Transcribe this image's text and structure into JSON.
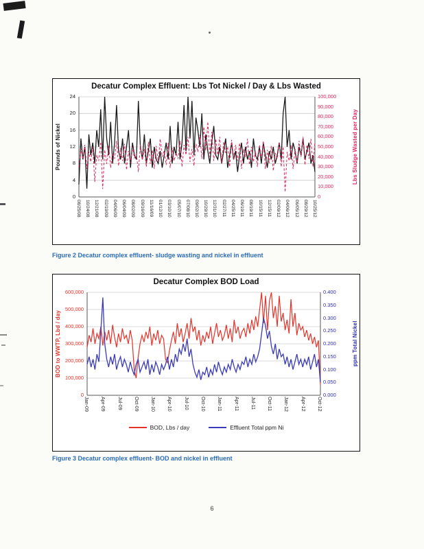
{
  "page": {
    "number": "6"
  },
  "figures": [
    {
      "caption": "Figure 2 Decatur complex effluent- sludge wasting and nickel in effluent"
    },
    {
      "caption": "Figure 3 Decatur complex effluent- BOD and nickel in effluent"
    }
  ],
  "chart_data": [
    {
      "type": "line",
      "title": "Decatur Complex Effluent:  Lbs Tot Nickel / Day & Lbs Wasted",
      "ylabel_left": "Pounds of Nickel",
      "ylabel_right": "Lbs Sludge Wasted per Day",
      "ylim_left": [
        0,
        24
      ],
      "ylim_right": [
        0,
        100000
      ],
      "yticks_left": [
        "24",
        "20",
        "16",
        "12",
        "8",
        "4",
        "0"
      ],
      "yticks_right": [
        "100,000",
        "90,000",
        "80,000",
        "70,000",
        "60,000",
        "50,000",
        "40,000",
        "30,000",
        "20,000",
        "10,000",
        "0"
      ],
      "grid": "horizontal",
      "xticklabels": [
        "08/25/08",
        "10/24/08",
        "12/21/08",
        "02/19/09",
        "04/06/09",
        "06/04/09",
        "08/02/09",
        "09/16/09",
        "11/16/09",
        "01/12/10",
        "03/10/10",
        "05/07/10",
        "07/08/10",
        "09/02/10",
        "10/29/10",
        "12/31/10",
        "02/27/11",
        "04/25/11",
        "06/19/11",
        "08/19/11",
        "10/15/11",
        "12/15/11",
        "02/09/12",
        "04/06/12",
        "06/05/12",
        "08/29/12",
        "10/25/12"
      ],
      "series": [
        {
          "name": "Lbs Tot Nickel / Day",
          "axis": "left",
          "color": "#1a1a1a",
          "style": "solid",
          "values": [
            3,
            14,
            9,
            12,
            2,
            15,
            10,
            13,
            8,
            16,
            12,
            21,
            9,
            24,
            14,
            10,
            18,
            8,
            13,
            22,
            11,
            9,
            14,
            8,
            12,
            16,
            7,
            13,
            10,
            9,
            23,
            12,
            9,
            15,
            8,
            11,
            14,
            7,
            12,
            9,
            8,
            11,
            7,
            10,
            13,
            9,
            17,
            8,
            12,
            10,
            18,
            9,
            13,
            22,
            11,
            24,
            14,
            23,
            10,
            19,
            16,
            12,
            20,
            9,
            15,
            11,
            8,
            13,
            17,
            10,
            9,
            12,
            8,
            11,
            14,
            7,
            10,
            13,
            9,
            11,
            6,
            10,
            13,
            8,
            12,
            9,
            11,
            7,
            14,
            10,
            9,
            12,
            8,
            13,
            10,
            7,
            11,
            9,
            12,
            8,
            10,
            13,
            9,
            20,
            24,
            12,
            16,
            9,
            13,
            11,
            8,
            12,
            10,
            14,
            9,
            11,
            13,
            8,
            10,
            6
          ]
        },
        {
          "name": "Lbs Sludge Wasted per Day",
          "axis": "right",
          "color": "#e0245e",
          "style": "dashed",
          "values": [
            30000,
            48000,
            38000,
            52000,
            28000,
            45000,
            35000,
            50000,
            15000,
            42000,
            36000,
            55000,
            8000,
            47000,
            33000,
            51000,
            29000,
            44000,
            38000,
            56000,
            31000,
            49000,
            36000,
            53000,
            27000,
            46000,
            34000,
            50000,
            39000,
            43000,
            25000,
            52000,
            37000,
            48000,
            30000,
            55000,
            33000,
            47000,
            28000,
            51000,
            35000,
            58000,
            40000,
            46000,
            32000,
            54000,
            29000,
            49000,
            36000,
            44000,
            38000,
            56000,
            30000,
            52000,
            42000,
            60000,
            35000,
            48000,
            31000,
            53000,
            45000,
            62000,
            38000,
            70000,
            46000,
            75000,
            40000,
            65000,
            36000,
            58000,
            42000,
            60000,
            34000,
            55000,
            44000,
            50000,
            30000,
            57000,
            38000,
            52000,
            36000,
            54000,
            28000,
            48000,
            40000,
            58000,
            32000,
            50000,
            35000,
            46000,
            30000,
            52000,
            38000,
            56000,
            28000,
            47000,
            34000,
            51000,
            26000,
            44000,
            38000,
            55000,
            30000,
            50000,
            5000,
            45000,
            36000,
            52000,
            28000,
            48000,
            34000,
            56000,
            40000,
            60000,
            32000,
            52000,
            38000,
            58000,
            30000,
            55000
          ]
        }
      ]
    },
    {
      "type": "line",
      "title": "Decatur Complex BOD Load",
      "ylabel_left": "BOD to WWTP, Lbd / day",
      "ylabel_right": "ppm Total Nickel",
      "ylim_left": [
        0,
        600000
      ],
      "ylim_right": [
        0,
        0.4
      ],
      "yticks_left": [
        "600,000",
        "500,000",
        "400,000",
        "300,000",
        "200,000",
        "100,000",
        "0"
      ],
      "yticks_right": [
        "0.400",
        "0.350",
        "0.300",
        "0.250",
        "0.200",
        "0.150",
        "0.100",
        "0.050",
        "0.000"
      ],
      "grid": "horizontal",
      "legend_position": "bottom",
      "xticklabels": [
        "Jan-09",
        "Apr-09",
        "Jul-09",
        "Oct-09",
        "Jan-10",
        "Apr-10",
        "Jul-10",
        "Oct-10",
        "Jan-11",
        "Apr-11",
        "Jul-11",
        "Oct-11",
        "Jan-12",
        "Apr-12",
        "Oct-12"
      ],
      "series": [
        {
          "name": "BOD, Lbs / day",
          "axis": "left",
          "color": "#e53228",
          "style": "solid",
          "values": [
            280000,
            350000,
            310000,
            390000,
            300000,
            360000,
            330000,
            400000,
            290000,
            370000,
            320000,
            380000,
            300000,
            410000,
            340000,
            280000,
            360000,
            310000,
            390000,
            330000,
            350000,
            300000,
            380000,
            320000,
            150000,
            100000,
            220000,
            300000,
            350000,
            310000,
            370000,
            330000,
            400000,
            290000,
            360000,
            320000,
            380000,
            300000,
            350000,
            330000,
            210000,
            190000,
            260000,
            320000,
            370000,
            300000,
            420000,
            340000,
            390000,
            310000,
            360000,
            420000,
            330000,
            450000,
            370000,
            400000,
            320000,
            380000,
            290000,
            350000,
            310000,
            370000,
            330000,
            400000,
            300000,
            360000,
            420000,
            340000,
            380000,
            320000,
            350000,
            410000,
            330000,
            390000,
            310000,
            440000,
            360000,
            400000,
            330000,
            370000,
            390000,
            340000,
            420000,
            360000,
            440000,
            380000,
            460000,
            400000,
            500000,
            600000,
            420000,
            580000,
            380000,
            550000,
            600000,
            450000,
            520000,
            400000,
            580000,
            430000,
            480000,
            380000,
            440000,
            360000,
            560000,
            400000,
            480000,
            350000,
            420000,
            380000,
            400000,
            340000,
            380000,
            320000,
            360000,
            300000,
            340000,
            280000,
            320000,
            60000
          ]
        },
        {
          "name": "Effluent Total ppm Ni",
          "axis": "right",
          "color": "#3a3ab8",
          "style": "solid",
          "values": [
            0.12,
            0.15,
            0.11,
            0.14,
            0.1,
            0.16,
            0.13,
            0.25,
            0.38,
            0.2,
            0.14,
            0.11,
            0.15,
            0.12,
            0.16,
            0.1,
            0.13,
            0.15,
            0.11,
            0.14,
            0.12,
            0.09,
            0.13,
            0.1,
            0.08,
            0.12,
            0.14,
            0.09,
            0.11,
            0.13,
            0.1,
            0.14,
            0.08,
            0.12,
            0.09,
            0.13,
            0.11,
            0.08,
            0.12,
            0.1,
            0.12,
            0.15,
            0.1,
            0.14,
            0.11,
            0.16,
            0.13,
            0.18,
            0.16,
            0.2,
            0.17,
            0.22,
            0.15,
            0.18,
            0.12,
            0.09,
            0.07,
            0.1,
            0.06,
            0.09,
            0.08,
            0.11,
            0.07,
            0.1,
            0.08,
            0.12,
            0.09,
            0.13,
            0.1,
            0.08,
            0.11,
            0.09,
            0.12,
            0.1,
            0.14,
            0.11,
            0.09,
            0.12,
            0.1,
            0.13,
            0.12,
            0.15,
            0.11,
            0.14,
            0.12,
            0.16,
            0.13,
            0.15,
            0.18,
            0.24,
            0.3,
            0.27,
            0.22,
            0.25,
            0.19,
            0.16,
            0.2,
            0.14,
            0.18,
            0.15,
            0.16,
            0.12,
            0.15,
            0.11,
            0.14,
            0.1,
            0.13,
            0.16,
            0.12,
            0.14,
            0.11,
            0.14,
            0.12,
            0.15,
            0.1,
            0.13,
            0.16,
            0.11,
            0.14,
            0.05
          ]
        }
      ]
    }
  ]
}
